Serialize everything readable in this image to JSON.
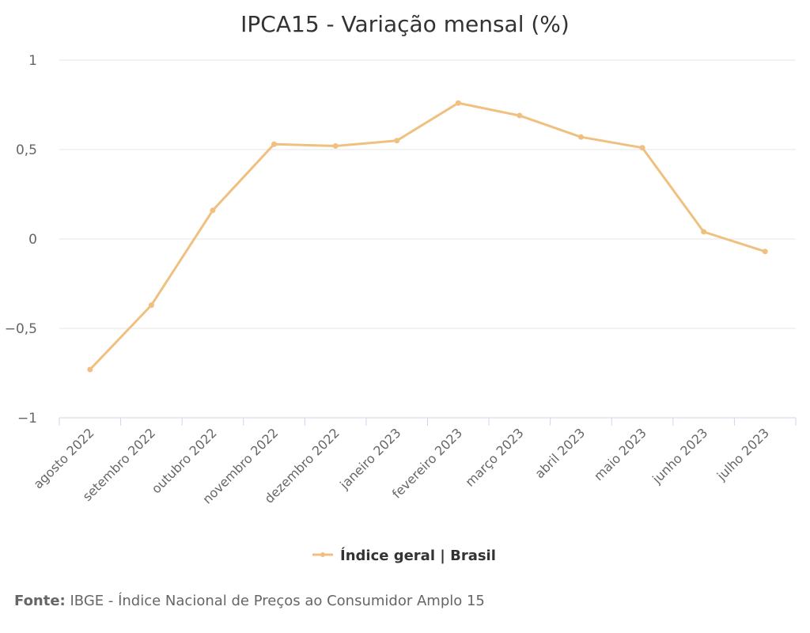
{
  "chart_data": {
    "type": "line",
    "title": "IPCA15 - Variação mensal (%)",
    "categories": [
      "agosto 2022",
      "setembro 2022",
      "outubro 2022",
      "novembro 2022",
      "dezembro 2022",
      "janeiro 2023",
      "fevereiro 2023",
      "março 2023",
      "abril 2023",
      "maio 2023",
      "junho 2023",
      "julho 2023"
    ],
    "series": [
      {
        "name": "Índice geral | Brasil",
        "values": [
          -0.73,
          -0.37,
          0.16,
          0.53,
          0.52,
          0.55,
          0.76,
          0.69,
          0.57,
          0.51,
          0.04,
          -0.07
        ],
        "color": "#f0c080"
      }
    ],
    "ylim": [
      -1,
      1
    ],
    "yticks": [
      1,
      0.5,
      0,
      -0.5,
      -1
    ],
    "ytick_labels": [
      "1",
      "0,5",
      "0",
      "−0,5",
      "−1"
    ],
    "grid": true,
    "legend_position": "bottom-center"
  },
  "source": {
    "label": "Fonte:",
    "text": " IBGE - Índice Nacional de Preços ao Consumidor Amplo 15"
  },
  "colors": {
    "grid": "#e6e6e6",
    "axis": "#ccd6eb",
    "series": "#f0c080"
  }
}
